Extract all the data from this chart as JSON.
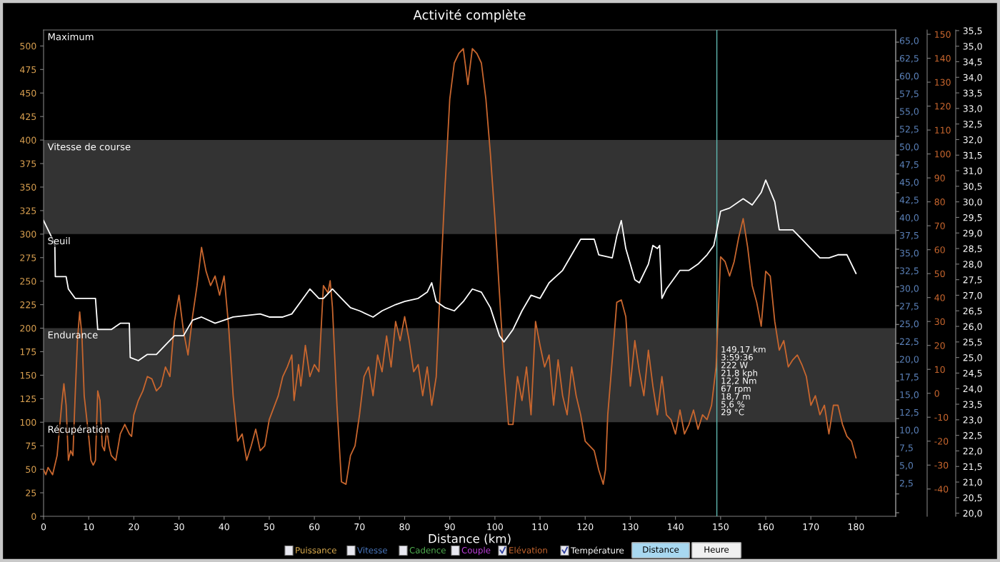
{
  "chart_data": {
    "type": "line",
    "title": "Activité complète",
    "xlabel": "Distance (km)",
    "xlim": [
      0,
      188.8
    ],
    "xticks": [
      0,
      10,
      20,
      30,
      40,
      50,
      60,
      70,
      80,
      90,
      100,
      110,
      120,
      130,
      140,
      150,
      160,
      170,
      180
    ],
    "ylim": [
      0,
      517
    ],
    "yticks": [
      0,
      25,
      50,
      75,
      100,
      125,
      150,
      175,
      200,
      225,
      250,
      275,
      300,
      325,
      350,
      375,
      400,
      425,
      450,
      475,
      500
    ],
    "y2lim": [
      -51.4,
      151.8
    ],
    "y2ticks": [
      -40,
      -30,
      -20,
      -10,
      0,
      10,
      20,
      30,
      40,
      50,
      60,
      70,
      80,
      90,
      100,
      110,
      120,
      130,
      140,
      150
    ],
    "y3lim": [
      19.9,
      35.52
    ],
    "y3ticks": [
      {
        "value": 20,
        "label": "20,0"
      },
      {
        "value": 20.5,
        "label": "20,5"
      },
      {
        "value": 21,
        "label": "21,0"
      },
      {
        "value": 21.5,
        "label": "21,5"
      },
      {
        "value": 22,
        "label": "22,0"
      },
      {
        "value": 22.5,
        "label": "22,5"
      },
      {
        "value": 23,
        "label": "23,0"
      },
      {
        "value": 23.5,
        "label": "23,5"
      },
      {
        "value": 24,
        "label": "24,0"
      },
      {
        "value": 24.5,
        "label": "24,5"
      },
      {
        "value": 25,
        "label": "25,0"
      },
      {
        "value": 25.5,
        "label": "25,5"
      },
      {
        "value": 26,
        "label": "26,0"
      },
      {
        "value": 26.5,
        "label": "26,5"
      },
      {
        "value": 27,
        "label": "27,0"
      },
      {
        "value": 27.5,
        "label": "27,5"
      },
      {
        "value": 28,
        "label": "28,0"
      },
      {
        "value": 28.5,
        "label": "28,5"
      },
      {
        "value": 29,
        "label": "29,0"
      },
      {
        "value": 29.5,
        "label": "29,5"
      },
      {
        "value": 30,
        "label": "30,0"
      },
      {
        "value": 30.5,
        "label": "30,5"
      },
      {
        "value": 31,
        "label": "31,0"
      },
      {
        "value": 31.5,
        "label": "31,5"
      },
      {
        "value": 32,
        "label": "32,0"
      },
      {
        "value": 32.5,
        "label": "32,5"
      },
      {
        "value": 33,
        "label": "33,0"
      },
      {
        "value": 33.5,
        "label": "33,5"
      },
      {
        "value": 34,
        "label": "34,0"
      },
      {
        "value": 34.5,
        "label": "34,5"
      },
      {
        "value": 35,
        "label": "35,0"
      },
      {
        "value": 35.5,
        "label": "35,5"
      }
    ],
    "bands": [
      {
        "axis": "y",
        "from": 300,
        "to": 400,
        "label": "Vitesse de course",
        "color": "#333333"
      },
      {
        "axis": "y",
        "from": 100,
        "to": 200,
        "label": "Endurance",
        "color": "#333333"
      }
    ],
    "ref_lines": [
      {
        "axis": "x",
        "value": 149.17,
        "color": "#5fb8b0"
      }
    ],
    "series": [
      {
        "axis": "y2",
        "color": "#c8662e",
        "x": [
          0,
          0.5,
          1,
          2,
          3,
          4,
          4.5,
          5,
          5.5,
          6,
          6.5,
          7,
          7.5,
          8,
          8.5,
          9,
          10,
          10.5,
          11,
          11.5,
          12,
          12.5,
          13,
          13.5,
          14,
          14.5,
          15,
          16,
          17,
          18,
          19,
          19.5,
          20,
          21,
          22,
          23,
          24,
          25,
          26,
          27,
          28,
          29,
          30,
          31,
          32,
          33,
          34,
          35,
          36,
          37,
          38,
          39,
          40,
          41,
          42,
          43,
          44,
          45,
          46,
          47,
          48,
          49,
          50,
          52,
          53,
          54,
          55,
          55.5,
          56.5,
          57,
          58,
          59,
          60,
          61,
          62,
          63,
          63.5,
          64,
          65,
          66,
          67,
          68,
          69,
          70,
          71,
          72,
          73,
          74,
          75,
          76,
          77,
          78,
          79,
          80,
          81,
          82,
          83,
          84,
          85,
          86,
          87,
          88,
          89,
          90,
          91,
          92,
          93,
          94,
          95,
          96,
          97,
          98,
          99,
          100,
          101,
          102,
          103,
          104,
          105,
          106,
          107,
          108,
          109,
          110,
          111,
          112,
          113,
          114,
          115,
          116,
          117,
          118,
          119,
          120,
          122,
          123,
          124,
          124.5,
          125,
          126,
          127,
          128,
          129,
          130,
          131,
          132,
          133,
          134,
          135,
          136,
          137,
          138,
          139,
          140,
          141,
          142,
          143,
          144,
          145,
          146,
          147,
          148,
          149,
          150,
          151,
          152,
          153,
          154,
          155,
          156,
          157,
          158,
          159,
          160,
          161,
          162,
          163,
          164,
          165,
          166,
          167,
          168,
          169,
          170,
          171,
          172,
          173,
          174,
          175,
          176,
          177,
          178,
          179,
          180
        ],
        "values": [
          -32,
          -34,
          -31,
          -34,
          -26,
          -5,
          4,
          -5,
          -28,
          -24,
          -26,
          -1,
          22,
          34,
          24,
          -1,
          -18,
          -28,
          -30,
          -28,
          1,
          -3,
          -22,
          -24,
          -15,
          -22,
          -26,
          -28,
          -17,
          -13,
          -17,
          -18,
          -9,
          -3,
          1,
          7,
          6,
          1,
          3,
          11,
          7,
          30,
          41,
          26,
          16,
          32,
          45,
          61,
          51,
          45,
          49,
          41,
          49,
          28,
          -1,
          -20,
          -17,
          -28,
          -22,
          -15,
          -24,
          -22,
          -11,
          -1,
          7,
          11,
          16,
          -3,
          12,
          3,
          20,
          7,
          12,
          9,
          45,
          42,
          47,
          36,
          -5,
          -37,
          -38,
          -26,
          -22,
          -9,
          7,
          11,
          -1,
          16,
          9,
          24,
          11,
          30,
          22,
          32,
          22,
          9,
          12,
          -1,
          11,
          -5,
          7,
          49,
          88,
          123,
          138,
          142,
          144,
          129,
          144,
          142,
          138,
          123,
          100,
          73,
          42,
          11,
          -13,
          -13,
          7,
          -3,
          11,
          -9,
          30,
          20,
          11,
          16,
          -5,
          14,
          -1,
          -9,
          11,
          -1,
          -9,
          -20,
          -24,
          -32,
          -38,
          -32,
          -9,
          14,
          38,
          39,
          32,
          3,
          22,
          9,
          -1,
          18,
          3,
          -9,
          7,
          -9,
          -11,
          -17,
          -7,
          -17,
          -13,
          -7,
          -15,
          -9,
          -11,
          -5,
          11,
          57,
          55,
          49,
          55,
          65,
          73,
          61,
          45,
          38,
          28,
          51,
          49,
          30,
          18,
          22,
          11,
          14,
          16,
          12,
          7,
          -5,
          -1,
          -9,
          -5,
          -17,
          -5,
          -5,
          -13,
          -18,
          -20,
          -27
        ]
      },
      {
        "axis": "y3",
        "color": "#ffffff",
        "x": [
          0,
          1,
          2,
          2.5,
          2.6,
          5,
          5.5,
          7,
          8,
          11,
          11.5,
          12,
          15,
          17,
          19,
          19.2,
          21,
          23,
          25,
          27,
          29,
          31,
          33,
          35,
          38,
          40,
          42,
          48,
          50,
          53,
          55,
          57,
          59,
          61,
          62,
          64,
          66,
          68,
          70,
          73,
          75,
          78,
          80,
          83,
          85,
          86,
          87,
          89,
          91,
          93,
          95,
          97,
          99,
          101,
          102,
          104,
          106,
          108,
          110,
          112,
          115,
          117,
          119,
          122,
          123,
          126,
          127,
          128,
          129,
          131,
          132,
          134,
          135,
          136,
          136.5,
          137,
          138,
          141,
          143,
          145,
          147,
          148.5,
          150,
          152,
          155,
          157,
          159,
          160,
          162,
          163,
          166,
          168,
          170,
          172,
          174,
          176,
          178,
          180
        ],
        "values": [
          29.4,
          29.1,
          28.8,
          28.6,
          27.6,
          27.6,
          27.2,
          26.9,
          26.9,
          26.9,
          26.9,
          25.9,
          25.9,
          26.1,
          26.1,
          25.0,
          24.9,
          25.1,
          25.1,
          25.4,
          25.7,
          25.7,
          26.2,
          26.3,
          26.1,
          26.2,
          26.3,
          26.4,
          26.3,
          26.3,
          26.4,
          26.8,
          27.2,
          26.9,
          26.9,
          27.2,
          26.9,
          26.6,
          26.5,
          26.3,
          26.5,
          26.7,
          26.8,
          26.9,
          27.1,
          27.4,
          26.8,
          26.6,
          26.5,
          26.8,
          27.2,
          27.1,
          26.6,
          25.7,
          25.5,
          25.9,
          26.5,
          27.0,
          26.9,
          27.4,
          27.8,
          28.3,
          28.8,
          28.8,
          28.3,
          28.2,
          28.9,
          29.4,
          28.5,
          27.5,
          27.4,
          28.0,
          28.6,
          28.5,
          28.6,
          26.9,
          27.2,
          27.8,
          27.8,
          28.0,
          28.3,
          28.6,
          29.7,
          29.8,
          30.1,
          29.9,
          30.3,
          30.7,
          30.0,
          29.1,
          29.1,
          28.8,
          28.5,
          28.2,
          28.2,
          28.3,
          28.3,
          27.7
        ]
      }
    ],
    "annotations": [
      "Maximum",
      "Seuil",
      "Récupération",
      "149,17 km\n3:59:36\n222 W\n21,8 kph\n12,2 Nm\n67 rpm\n18,7 m\n5,6 %\n29 °C",
      "65,0\n62,5\n60,0\n57,5\n55,0\n52,5\n50,0\n47,5\n45,0\n42,5\n40,0\n37,5\n35,0\n32,5\n30,0\n27,5\n25,0\n22,5\n20,0\n17,5\n15,0\n12,5\n10,0\n7,5\n5,0\n2,5",
      "Puissance",
      "Vitesse",
      "Cadence",
      "Couple",
      "Elévation",
      "Température",
      "Distance",
      "Heure"
    ]
  }
}
